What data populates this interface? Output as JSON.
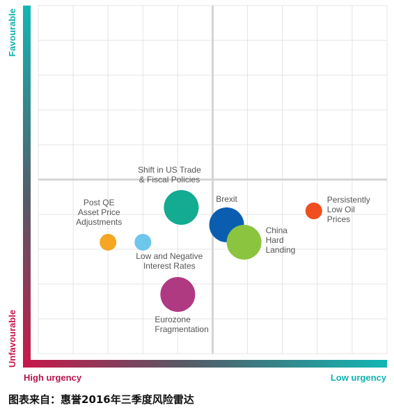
{
  "chart_data": {
    "type": "scatter",
    "title": "",
    "xlabel_left": "High urgency",
    "xlabel_right": "Low urgency",
    "ylabel_top": "Favourable",
    "ylabel_bottom": "Unfavourable",
    "xlim": [
      0,
      10
    ],
    "ylim": [
      0,
      10
    ],
    "grid": true,
    "quadrant_divider": {
      "x": 5,
      "y": 5
    },
    "points": [
      {
        "label": [
          "Post QE",
          "Asset Price",
          "Adjustments"
        ],
        "x": 2.0,
        "y": 3.2,
        "size": 1,
        "color": "#F5A623"
      },
      {
        "label": [
          "Low and Negative",
          "Interest Rates"
        ],
        "x": 3.0,
        "y": 3.2,
        "size": 1,
        "color": "#6EC6EA"
      },
      {
        "label": [
          "Shift in US Trade",
          "& Fiscal Policies"
        ],
        "x": 4.1,
        "y": 4.2,
        "size": 3,
        "color": "#13AB92"
      },
      {
        "label": [
          "Eurozone",
          "Fragmentation"
        ],
        "x": 4.0,
        "y": 1.7,
        "size": 3,
        "color": "#B03A82"
      },
      {
        "label": [
          "Brexit"
        ],
        "x": 5.4,
        "y": 3.7,
        "size": 3,
        "color": "#0B5EAF"
      },
      {
        "label": [
          "China",
          "Hard",
          "Landing"
        ],
        "x": 5.9,
        "y": 3.2,
        "size": 3,
        "color": "#8BC53F"
      },
      {
        "label": [
          "Persistently",
          "Low Oil",
          "Prices"
        ],
        "x": 7.9,
        "y": 4.1,
        "size": 1,
        "color": "#F04E1F"
      }
    ]
  },
  "caption": "图表来自：惠誉2016年三季度风险雷达"
}
